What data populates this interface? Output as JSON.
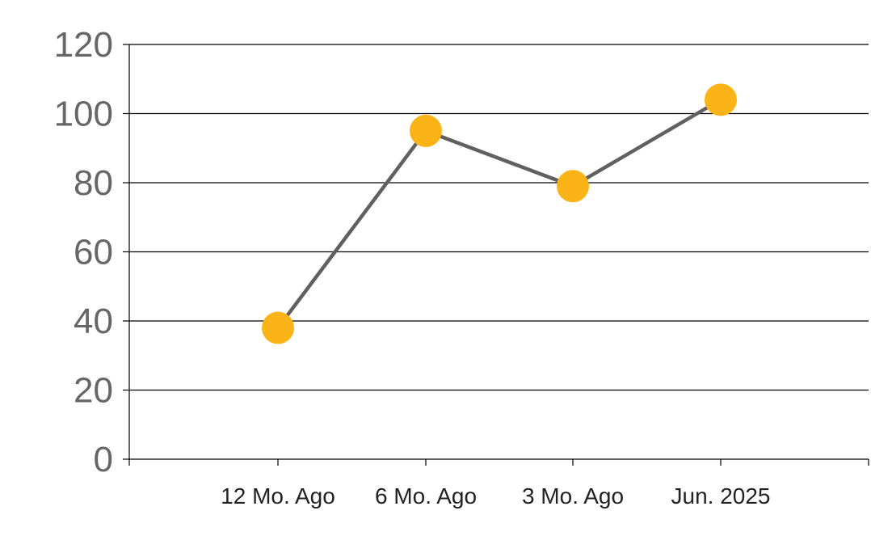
{
  "chart_data": {
    "type": "line",
    "categories": [
      "12 Mo. Ago",
      "6 Mo. Ago",
      "3 Mo. Ago",
      "Jun. 2025"
    ],
    "series": [
      {
        "values": [
          38,
          95,
          79,
          104
        ]
      }
    ],
    "ylim": [
      0,
      120
    ],
    "yticks": [
      0,
      20,
      40,
      60,
      80,
      100,
      120
    ],
    "grid": true,
    "legend": "none",
    "line_color": "#606060",
    "marker_color": "#FBB418"
  }
}
